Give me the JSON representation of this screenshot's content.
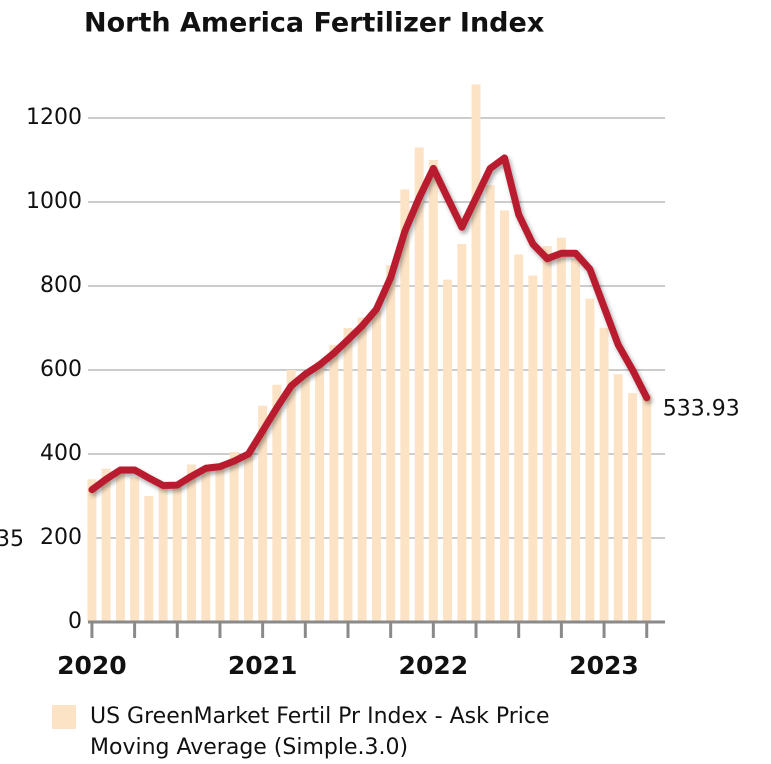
{
  "chart_data": {
    "type": "bar",
    "title": "North America Fertilizer Index",
    "x": [
      2020,
      2020.083,
      2020.167,
      2020.25,
      2020.333,
      2020.417,
      2020.5,
      2020.583,
      2020.667,
      2020.75,
      2020.833,
      2020.917,
      2021,
      2021.083,
      2021.167,
      2021.25,
      2021.333,
      2021.417,
      2021.5,
      2021.583,
      2021.667,
      2021.75,
      2021.833,
      2021.917,
      2022,
      2022.083,
      2022.167,
      2022.25,
      2022.333,
      2022.417,
      2022.5,
      2022.583,
      2022.667,
      2022.75,
      2022.833,
      2022.917,
      2023,
      2023.083,
      2023.167,
      2023.25
    ],
    "series": [
      {
        "name": "US GreenMarket Fertil Pr Index - Ask Price",
        "type": "bar",
        "color": "#fde3c6",
        "values": [
          340,
          365,
          365,
          345,
          300,
          320,
          330,
          375,
          370,
          365,
          405,
          400,
          515,
          565,
          600,
          590,
          620,
          660,
          700,
          725,
          740,
          850,
          1030,
          1130,
          1100,
          815,
          900,
          1280,
          1040,
          980,
          875,
          825,
          895,
          915,
          865,
          770,
          700,
          590,
          545,
          540
        ]
      },
      {
        "name": "Moving Average (Simple.3.0)",
        "type": "line",
        "color": "#b81f2e",
        "values": [
          315,
          340,
          362,
          362,
          343,
          325,
          326,
          347,
          366,
          370,
          383,
          400,
          455,
          510,
          562,
          590,
          612,
          640,
          672,
          705,
          745,
          820,
          930,
          1010,
          1080,
          1010,
          940,
          1010,
          1080,
          1105,
          970,
          900,
          865,
          878,
          878,
          840,
          750,
          660,
          600,
          533.93
        ],
        "value_labels": [
          null,
          null,
          null,
          null,
          null,
          null,
          null,
          null,
          null,
          null,
          null,
          null,
          null,
          null,
          null,
          null,
          null,
          null,
          null,
          null,
          null,
          null,
          null,
          null,
          null,
          null,
          null,
          null,
          null,
          null,
          null,
          null,
          null,
          null,
          null,
          null,
          null,
          null,
          null,
          "533.93"
        ]
      }
    ],
    "xlim": [
      2019.977,
      2023.357
    ],
    "xticks": [
      2020,
      2021,
      2022,
      2023
    ],
    "xminorticks": [
      2020.25,
      2020.5,
      2020.75,
      2021.25,
      2021.5,
      2021.75,
      2022.25,
      2022.5,
      2022.75,
      2023.25
    ],
    "ylim": [
      0,
      1300
    ],
    "yticks": [
      0,
      200,
      400,
      600,
      800,
      1000,
      1200
    ],
    "grid": true,
    "annotations": [
      {
        "text": "35"
      }
    ]
  }
}
